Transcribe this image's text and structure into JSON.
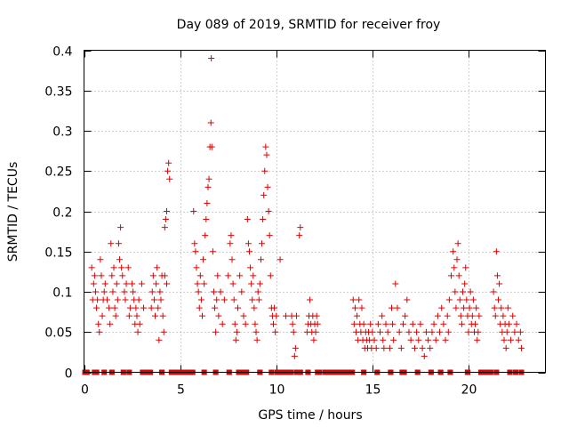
{
  "chart_data": {
    "type": "scatter",
    "title": "Day 089 of 2019, SRMTID for receiver froy",
    "xlabel": "GPS time / hours",
    "ylabel": "SRMTID / TECUs",
    "xlim": [
      0,
      24
    ],
    "ylim": [
      0,
      0.4
    ],
    "x_ticks": [
      0,
      5,
      10,
      15,
      20
    ],
    "x_tick_labels": [
      "0",
      "5",
      "10",
      "15",
      "20"
    ],
    "y_ticks": [
      0,
      0.05,
      0.1,
      0.15,
      0.2,
      0.25,
      0.3,
      0.35,
      0.4
    ],
    "y_tick_labels": [
      "0",
      "0.05",
      "0.1",
      "0.15",
      "0.2",
      "0.25",
      "0.3",
      "0.35",
      "0.4"
    ],
    "grid": true,
    "marker": "+",
    "color": "#e00000",
    "series": [
      {
        "name": "SRMTID",
        "points": [
          [
            0.4,
            0.13
          ],
          [
            0.45,
            0.09
          ],
          [
            0.5,
            0.11
          ],
          [
            0.55,
            0.12
          ],
          [
            0.6,
            0.1
          ],
          [
            0.65,
            0.08
          ],
          [
            0.7,
            0.09
          ],
          [
            0.75,
            0.06
          ],
          [
            0.8,
            0.05
          ],
          [
            0.85,
            0.14
          ],
          [
            0.9,
            0.12
          ],
          [
            0.95,
            0.07
          ],
          [
            1.0,
            0.09
          ],
          [
            1.05,
            0.1
          ],
          [
            1.1,
            0.11
          ],
          [
            1.2,
            0.09
          ],
          [
            1.3,
            0.08
          ],
          [
            1.35,
            0.06
          ],
          [
            1.4,
            0.16
          ],
          [
            1.45,
            0.12
          ],
          [
            1.5,
            0.1
          ],
          [
            1.55,
            0.13
          ],
          [
            1.6,
            0.08
          ],
          [
            1.65,
            0.07
          ],
          [
            1.7,
            0.11
          ],
          [
            1.75,
            0.09
          ],
          [
            1.8,
            0.16
          ],
          [
            1.85,
            0.14
          ],
          [
            1.9,
            0.18
          ],
          [
            1.95,
            0.13
          ],
          [
            2.0,
            0.12
          ],
          [
            2.1,
            0.1
          ],
          [
            2.15,
            0.09
          ],
          [
            2.2,
            0.11
          ],
          [
            2.3,
            0.13
          ],
          [
            2.35,
            0.07
          ],
          [
            2.4,
            0.08
          ],
          [
            2.5,
            0.11
          ],
          [
            2.55,
            0.1
          ],
          [
            2.6,
            0.09
          ],
          [
            2.65,
            0.06
          ],
          [
            2.7,
            0.08
          ],
          [
            2.75,
            0.07
          ],
          [
            2.8,
            0.05
          ],
          [
            2.85,
            0.09
          ],
          [
            2.9,
            0.06
          ],
          [
            3.0,
            0.11
          ],
          [
            3.1,
            0.08
          ],
          [
            3.5,
            0.08
          ],
          [
            3.55,
            0.1
          ],
          [
            3.6,
            0.12
          ],
          [
            3.65,
            0.09
          ],
          [
            3.7,
            0.07
          ],
          [
            3.75,
            0.11
          ],
          [
            3.8,
            0.13
          ],
          [
            3.85,
            0.08
          ],
          [
            3.9,
            0.04
          ],
          [
            3.95,
            0.1
          ],
          [
            4.0,
            0.09
          ],
          [
            4.05,
            0.12
          ],
          [
            4.1,
            0.07
          ],
          [
            4.15,
            0.05
          ],
          [
            4.2,
            0.18
          ],
          [
            4.25,
            0.19
          ],
          [
            4.3,
            0.2
          ],
          [
            4.35,
            0.25
          ],
          [
            4.4,
            0.26
          ],
          [
            4.45,
            0.24
          ],
          [
            4.2,
            0.12
          ],
          [
            4.3,
            0.11
          ],
          [
            5.7,
            0.2
          ],
          [
            5.75,
            0.16
          ],
          [
            5.8,
            0.15
          ],
          [
            5.85,
            0.13
          ],
          [
            5.9,
            0.11
          ],
          [
            5.95,
            0.1
          ],
          [
            6.0,
            0.08
          ],
          [
            6.05,
            0.12
          ],
          [
            6.1,
            0.09
          ],
          [
            6.15,
            0.07
          ],
          [
            6.2,
            0.14
          ],
          [
            6.25,
            0.11
          ],
          [
            6.3,
            0.17
          ],
          [
            6.35,
            0.19
          ],
          [
            6.4,
            0.21
          ],
          [
            6.45,
            0.23
          ],
          [
            6.5,
            0.24
          ],
          [
            6.55,
            0.28
          ],
          [
            6.6,
            0.31
          ],
          [
            6.62,
            0.39
          ],
          [
            6.65,
            0.28
          ],
          [
            6.7,
            0.15
          ],
          [
            6.75,
            0.1
          ],
          [
            6.8,
            0.08
          ],
          [
            6.85,
            0.05
          ],
          [
            6.9,
            0.09
          ],
          [
            6.95,
            0.12
          ],
          [
            7.0,
            0.07
          ],
          [
            7.1,
            0.1
          ],
          [
            7.2,
            0.06
          ],
          [
            7.3,
            0.09
          ],
          [
            7.5,
            0.12
          ],
          [
            7.6,
            0.16
          ],
          [
            7.65,
            0.17
          ],
          [
            7.7,
            0.14
          ],
          [
            7.75,
            0.11
          ],
          [
            7.8,
            0.09
          ],
          [
            7.85,
            0.06
          ],
          [
            7.9,
            0.04
          ],
          [
            7.95,
            0.05
          ],
          [
            8.0,
            0.08
          ],
          [
            8.1,
            0.12
          ],
          [
            8.2,
            0.1
          ],
          [
            8.3,
            0.07
          ],
          [
            8.4,
            0.06
          ],
          [
            8.5,
            0.19
          ],
          [
            8.55,
            0.16
          ],
          [
            8.6,
            0.15
          ],
          [
            8.65,
            0.13
          ],
          [
            8.7,
            0.11
          ],
          [
            8.75,
            0.09
          ],
          [
            8.8,
            0.12
          ],
          [
            8.85,
            0.08
          ],
          [
            8.9,
            0.06
          ],
          [
            8.95,
            0.05
          ],
          [
            9.0,
            0.04
          ],
          [
            9.05,
            0.1
          ],
          [
            9.1,
            0.09
          ],
          [
            9.15,
            0.11
          ],
          [
            9.2,
            0.14
          ],
          [
            9.25,
            0.16
          ],
          [
            9.3,
            0.19
          ],
          [
            9.35,
            0.22
          ],
          [
            9.4,
            0.25
          ],
          [
            9.45,
            0.28
          ],
          [
            9.5,
            0.27
          ],
          [
            9.55,
            0.23
          ],
          [
            9.6,
            0.2
          ],
          [
            9.65,
            0.17
          ],
          [
            9.7,
            0.12
          ],
          [
            9.75,
            0.08
          ],
          [
            9.8,
            0.07
          ],
          [
            9.85,
            0.06
          ],
          [
            9.9,
            0.08
          ],
          [
            9.95,
            0.05
          ],
          [
            10.0,
            0.07
          ],
          [
            10.2,
            0.14
          ],
          [
            10.5,
            0.07
          ],
          [
            10.8,
            0.07
          ],
          [
            10.85,
            0.06
          ],
          [
            10.9,
            0.05
          ],
          [
            10.95,
            0.02
          ],
          [
            11.0,
            0.03
          ],
          [
            11.05,
            0.07
          ],
          [
            11.2,
            0.17
          ],
          [
            11.25,
            0.18
          ],
          [
            11.6,
            0.05
          ],
          [
            11.65,
            0.06
          ],
          [
            11.7,
            0.07
          ],
          [
            11.75,
            0.09
          ],
          [
            11.8,
            0.06
          ],
          [
            11.85,
            0.05
          ],
          [
            11.9,
            0.07
          ],
          [
            11.95,
            0.04
          ],
          [
            12.0,
            0.06
          ],
          [
            12.05,
            0.05
          ],
          [
            12.1,
            0.07
          ],
          [
            12.15,
            0.06
          ],
          [
            14.0,
            0.09
          ],
          [
            14.05,
            0.06
          ],
          [
            14.1,
            0.08
          ],
          [
            14.15,
            0.05
          ],
          [
            14.2,
            0.07
          ],
          [
            14.25,
            0.04
          ],
          [
            14.3,
            0.09
          ],
          [
            14.35,
            0.06
          ],
          [
            14.4,
            0.05
          ],
          [
            14.45,
            0.08
          ],
          [
            14.5,
            0.04
          ],
          [
            14.55,
            0.06
          ],
          [
            14.6,
            0.03
          ],
          [
            14.65,
            0.05
          ],
          [
            14.7,
            0.04
          ],
          [
            14.75,
            0.03
          ],
          [
            14.8,
            0.05
          ],
          [
            14.85,
            0.04
          ],
          [
            14.9,
            0.06
          ],
          [
            14.95,
            0.03
          ],
          [
            15.0,
            0.05
          ],
          [
            15.1,
            0.04
          ],
          [
            15.2,
            0.03
          ],
          [
            15.3,
            0.06
          ],
          [
            15.4,
            0.05
          ],
          [
            15.5,
            0.07
          ],
          [
            15.55,
            0.04
          ],
          [
            15.6,
            0.03
          ],
          [
            15.7,
            0.06
          ],
          [
            15.8,
            0.05
          ],
          [
            15.9,
            0.03
          ],
          [
            16.0,
            0.08
          ],
          [
            16.05,
            0.06
          ],
          [
            16.1,
            0.04
          ],
          [
            16.2,
            0.11
          ],
          [
            16.3,
            0.08
          ],
          [
            16.4,
            0.05
          ],
          [
            16.5,
            0.03
          ],
          [
            16.6,
            0.06
          ],
          [
            16.7,
            0.07
          ],
          [
            16.8,
            0.09
          ],
          [
            16.9,
            0.05
          ],
          [
            17.0,
            0.04
          ],
          [
            17.1,
            0.06
          ],
          [
            17.2,
            0.03
          ],
          [
            17.3,
            0.05
          ],
          [
            17.4,
            0.04
          ],
          [
            17.5,
            0.06
          ],
          [
            17.6,
            0.03
          ],
          [
            17.7,
            0.02
          ],
          [
            17.8,
            0.05
          ],
          [
            17.9,
            0.04
          ],
          [
            18.0,
            0.03
          ],
          [
            18.1,
            0.05
          ],
          [
            18.2,
            0.06
          ],
          [
            18.3,
            0.04
          ],
          [
            18.4,
            0.07
          ],
          [
            18.5,
            0.05
          ],
          [
            18.6,
            0.08
          ],
          [
            18.7,
            0.06
          ],
          [
            18.8,
            0.04
          ],
          [
            18.9,
            0.07
          ],
          [
            18.95,
            0.05
          ],
          [
            19.0,
            0.09
          ],
          [
            19.1,
            0.12
          ],
          [
            19.2,
            0.15
          ],
          [
            19.25,
            0.13
          ],
          [
            19.3,
            0.1
          ],
          [
            19.35,
            0.08
          ],
          [
            19.4,
            0.14
          ],
          [
            19.45,
            0.16
          ],
          [
            19.5,
            0.12
          ],
          [
            19.55,
            0.09
          ],
          [
            19.6,
            0.07
          ],
          [
            19.65,
            0.06
          ],
          [
            19.7,
            0.1
          ],
          [
            19.75,
            0.08
          ],
          [
            19.8,
            0.11
          ],
          [
            19.85,
            0.13
          ],
          [
            19.9,
            0.09
          ],
          [
            19.95,
            0.07
          ],
          [
            20.0,
            0.05
          ],
          [
            20.05,
            0.08
          ],
          [
            20.1,
            0.1
          ],
          [
            20.15,
            0.06
          ],
          [
            20.2,
            0.07
          ],
          [
            20.25,
            0.09
          ],
          [
            20.3,
            0.05
          ],
          [
            20.35,
            0.06
          ],
          [
            20.4,
            0.08
          ],
          [
            20.45,
            0.04
          ],
          [
            20.5,
            0.05
          ],
          [
            20.55,
            0.07
          ],
          [
            21.3,
            0.1
          ],
          [
            21.35,
            0.08
          ],
          [
            21.4,
            0.07
          ],
          [
            21.45,
            0.15
          ],
          [
            21.5,
            0.12
          ],
          [
            21.55,
            0.09
          ],
          [
            21.6,
            0.11
          ],
          [
            21.65,
            0.06
          ],
          [
            21.7,
            0.08
          ],
          [
            21.75,
            0.05
          ],
          [
            21.8,
            0.07
          ],
          [
            21.85,
            0.04
          ],
          [
            21.9,
            0.06
          ],
          [
            21.95,
            0.03
          ],
          [
            22.0,
            0.05
          ],
          [
            22.05,
            0.08
          ],
          [
            22.1,
            0.06
          ],
          [
            22.2,
            0.04
          ],
          [
            22.3,
            0.07
          ],
          [
            22.4,
            0.05
          ],
          [
            22.5,
            0.06
          ],
          [
            22.6,
            0.04
          ],
          [
            22.7,
            0.05
          ],
          [
            22.75,
            0.03
          ]
        ]
      }
    ],
    "zero_segments": [
      [
        0.0,
        0.2
      ],
      [
        0.5,
        0.7
      ],
      [
        1.0,
        1.1
      ],
      [
        1.4,
        1.5
      ],
      [
        2.0,
        2.1
      ],
      [
        2.3,
        2.4
      ],
      [
        3.0,
        3.3
      ],
      [
        3.4,
        3.5
      ],
      [
        4.0,
        4.1
      ],
      [
        4.5,
        5.7
      ],
      [
        6.2,
        6.3
      ],
      [
        6.8,
        6.9
      ],
      [
        7.5,
        7.6
      ],
      [
        8.0,
        8.2
      ],
      [
        8.3,
        8.5
      ],
      [
        9.1,
        9.2
      ],
      [
        9.7,
        9.8
      ],
      [
        10.0,
        10.5
      ],
      [
        10.6,
        10.8
      ],
      [
        11.0,
        11.3
      ],
      [
        11.6,
        11.7
      ],
      [
        12.1,
        12.3
      ],
      [
        12.5,
        14.0
      ],
      [
        14.5,
        14.6
      ],
      [
        15.2,
        15.3
      ],
      [
        15.9,
        16.0
      ],
      [
        16.5,
        16.7
      ],
      [
        17.3,
        17.4
      ],
      [
        18.0,
        18.1
      ],
      [
        18.5,
        18.6
      ],
      [
        19.0,
        19.1
      ],
      [
        19.9,
        20.0
      ],
      [
        20.6,
        21.2
      ],
      [
        21.4,
        21.5
      ],
      [
        22.1,
        22.2
      ],
      [
        22.4,
        22.5
      ],
      [
        22.7,
        22.8
      ]
    ]
  }
}
